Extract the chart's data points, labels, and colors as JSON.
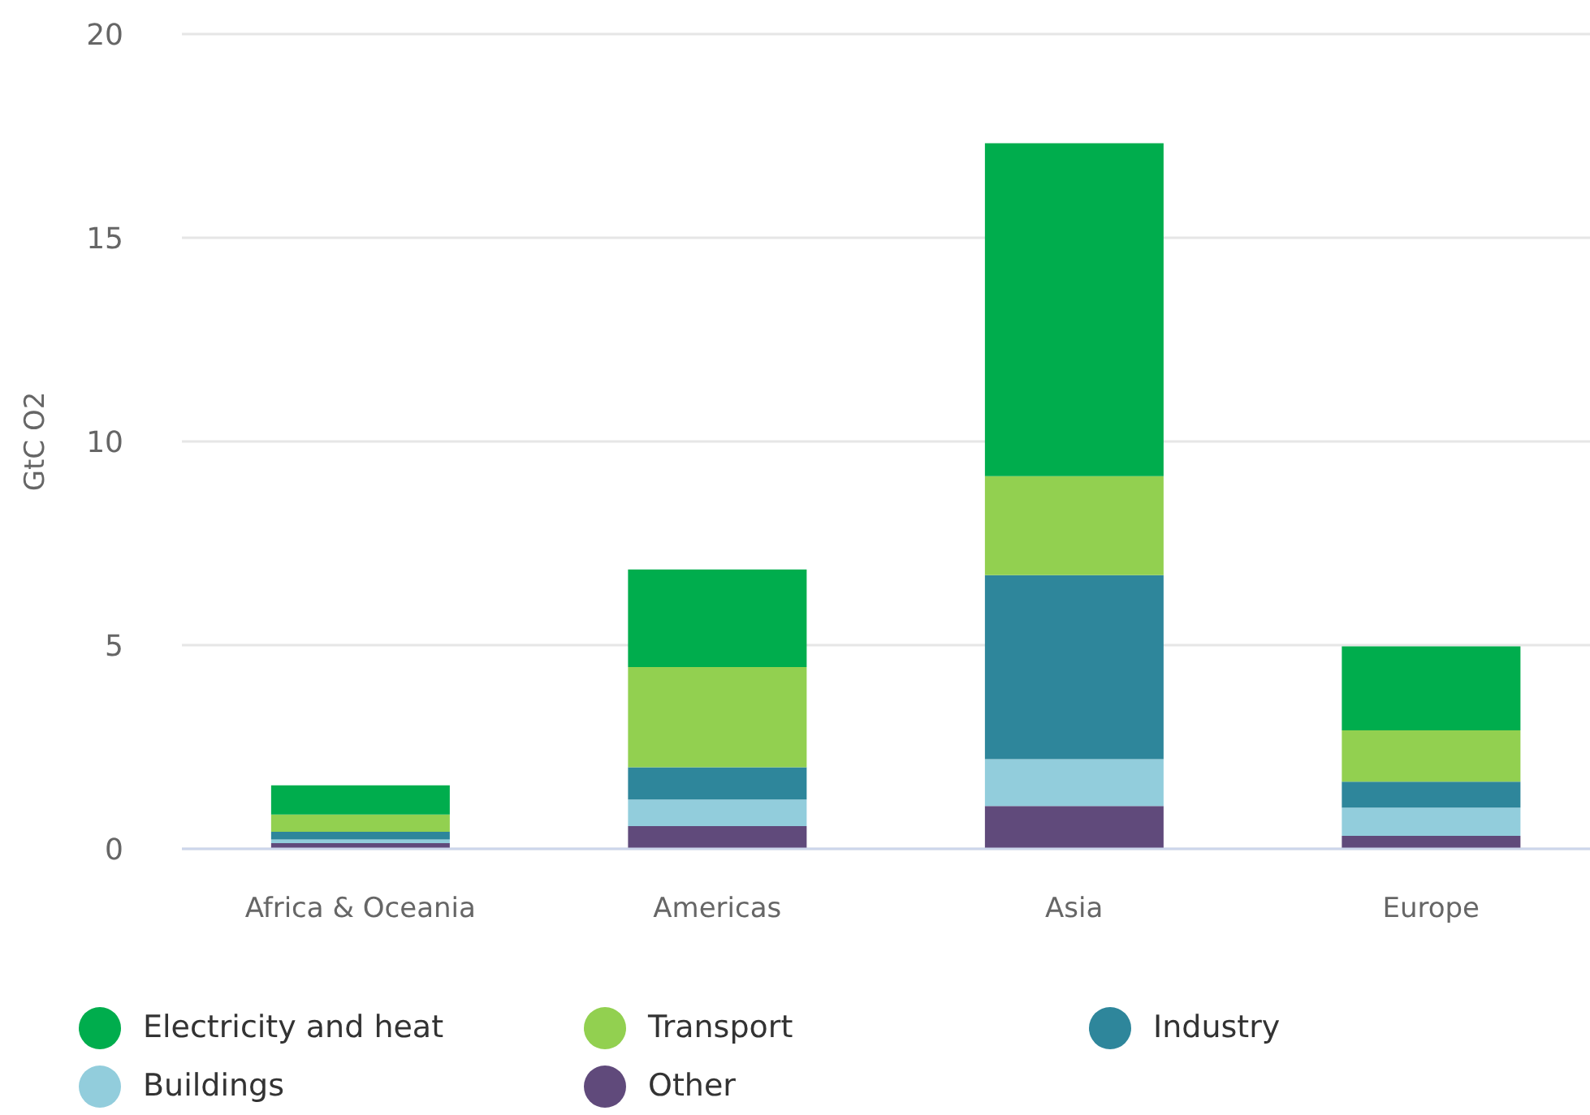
{
  "chart_data": {
    "type": "bar",
    "ylabel": "GtC O2",
    "categories": [
      "Africa & Oceania",
      "Americas",
      "Asia",
      "Europe"
    ],
    "series": [
      {
        "name": "Other",
        "color": "#604a7b",
        "values": [
          0.14,
          0.56,
          1.05,
          0.32
        ]
      },
      {
        "name": "Buildings",
        "color": "#92cddc",
        "values": [
          0.09,
          0.65,
          1.15,
          0.69
        ]
      },
      {
        "name": "Industry",
        "color": "#2e869b",
        "values": [
          0.19,
          0.79,
          4.52,
          0.64
        ]
      },
      {
        "name": "Transport",
        "color": "#92d050",
        "values": [
          0.42,
          2.46,
          2.43,
          1.26
        ]
      },
      {
        "name": "Electricity and heat",
        "color": "#00ad4d",
        "values": [
          0.72,
          2.4,
          8.17,
          2.06
        ]
      }
    ],
    "stacked": true,
    "ylim": [
      0,
      20
    ],
    "yticks": [
      0,
      5,
      10,
      15,
      20
    ],
    "grid": "y",
    "legend": "bottom"
  }
}
